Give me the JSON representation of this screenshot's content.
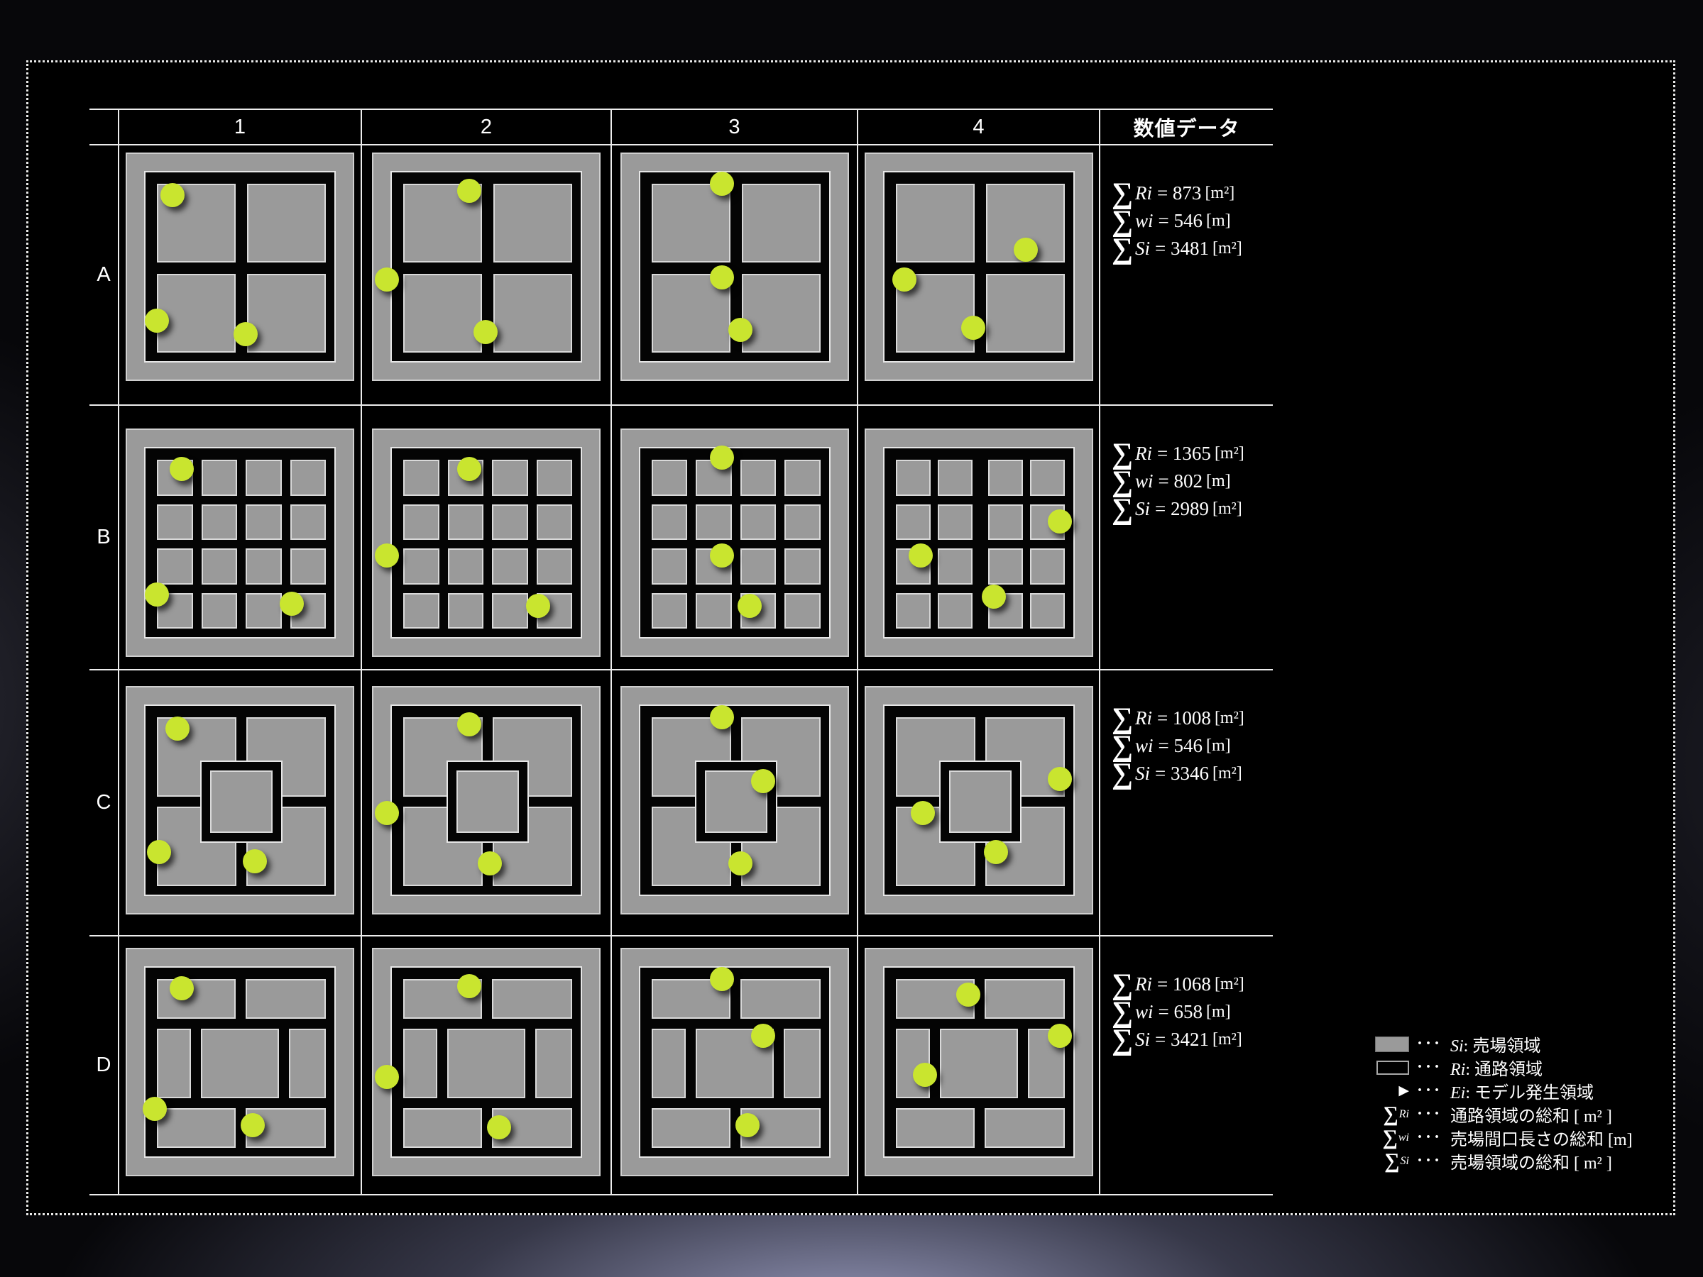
{
  "table": {
    "col_headers": [
      "1",
      "2",
      "3",
      "4"
    ],
    "data_col_header": "数値データ",
    "rows": [
      {
        "label": "A",
        "layout": "quad",
        "metrics": [
          {
            "v": "Ri",
            "e": "= 873",
            "u": "[m²]"
          },
          {
            "v": "wi",
            "e": "= 546",
            "u": "[m]"
          },
          {
            "v": "Si",
            "e": "= 3481",
            "u": "[m²]"
          }
        ],
        "cells": [
          {
            "dots": [
              [
                0.2,
                0.18
              ],
              [
                0.13,
                0.73
              ],
              [
                0.52,
                0.79
              ]
            ]
          },
          {
            "dots": [
              [
                0.42,
                0.16
              ],
              [
                0.06,
                0.55
              ],
              [
                0.49,
                0.78
              ]
            ]
          },
          {
            "dots": [
              [
                0.44,
                0.13
              ],
              [
                0.44,
                0.54
              ],
              [
                0.52,
                0.77
              ]
            ]
          },
          {
            "dots": [
              [
                0.7,
                0.42
              ],
              [
                0.17,
                0.55
              ],
              [
                0.47,
                0.76
              ]
            ]
          }
        ]
      },
      {
        "label": "B",
        "layout": "grid",
        "metrics": [
          {
            "v": "Ri",
            "e": "= 1365",
            "u": "[m²]"
          },
          {
            "v": "wi",
            "e": "= 802",
            "u": "[m]"
          },
          {
            "v": "Si",
            "e": "= 2989",
            "u": "[m²]"
          }
        ],
        "cells": [
          {
            "dots": [
              [
                0.24,
                0.17
              ],
              [
                0.13,
                0.72
              ],
              [
                0.72,
                0.76
              ]
            ]
          },
          {
            "dots": [
              [
                0.42,
                0.17
              ],
              [
                0.06,
                0.55
              ],
              [
                0.72,
                0.77
              ]
            ]
          },
          {
            "dots": [
              [
                0.44,
                0.12
              ],
              [
                0.44,
                0.55
              ],
              [
                0.56,
                0.77
              ]
            ]
          },
          {
            "variant": "wide-center",
            "dots": [
              [
                0.85,
                0.4
              ],
              [
                0.24,
                0.55
              ],
              [
                0.56,
                0.73
              ]
            ]
          }
        ]
      },
      {
        "label": "C",
        "layout": "ring",
        "metrics": [
          {
            "v": "Ri",
            "e": "= 1008",
            "u": "[m²]"
          },
          {
            "v": "wi",
            "e": "= 546",
            "u": "[m]"
          },
          {
            "v": "Si",
            "e": "= 3346",
            "u": "[m²]"
          }
        ],
        "cells": [
          {
            "dots": [
              [
                0.22,
                0.18
              ],
              [
                0.14,
                0.72
              ],
              [
                0.56,
                0.76
              ]
            ]
          },
          {
            "dots": [
              [
                0.42,
                0.16
              ],
              [
                0.06,
                0.55
              ],
              [
                0.51,
                0.77
              ]
            ]
          },
          {
            "dots": [
              [
                0.44,
                0.13
              ],
              [
                0.62,
                0.41
              ],
              [
                0.52,
                0.77
              ]
            ]
          },
          {
            "dots": [
              [
                0.85,
                0.4
              ],
              [
                0.25,
                0.55
              ],
              [
                0.57,
                0.72
              ]
            ]
          }
        ]
      },
      {
        "label": "D",
        "layout": "bands",
        "metrics": [
          {
            "v": "Ri",
            "e": "= 1068",
            "u": "[m²]"
          },
          {
            "v": "wi",
            "e": "= 658",
            "u": "[m]"
          },
          {
            "v": "Si",
            "e": "= 3421",
            "u": "[m²]"
          }
        ],
        "cells": [
          {
            "dots": [
              [
                0.24,
                0.17
              ],
              [
                0.12,
                0.7
              ],
              [
                0.55,
                0.77
              ]
            ]
          },
          {
            "dots": [
              [
                0.42,
                0.16
              ],
              [
                0.06,
                0.56
              ],
              [
                0.55,
                0.78
              ]
            ]
          },
          {
            "dots": [
              [
                0.44,
                0.13
              ],
              [
                0.62,
                0.38
              ],
              [
                0.55,
                0.77
              ]
            ]
          },
          {
            "dots": [
              [
                0.45,
                0.2
              ],
              [
                0.85,
                0.38
              ],
              [
                0.26,
                0.55
              ]
            ]
          }
        ]
      }
    ]
  },
  "legend": {
    "dots": "···",
    "items": [
      {
        "type": "swatch-filled",
        "v": "Si",
        "label": ": 売場領域"
      },
      {
        "type": "swatch-outline",
        "v": "Ri",
        "label": ": 通路領域"
      },
      {
        "type": "triangle",
        "v": "Ei",
        "label": ": モデル発生領域"
      },
      {
        "type": "sigma",
        "v": "Ri",
        "label": "通路領域の総和 [ m² ]"
      },
      {
        "type": "sigma",
        "v": "wi",
        "label": "売場間口長さの総和 [m]"
      },
      {
        "type": "sigma",
        "v": "Si",
        "label": "売場領域の総和 [ m² ]"
      }
    ],
    "triangle_glyph": "▶",
    "sigma_glyph": "∑"
  },
  "colors": {
    "sales_area": "#9a9a9a",
    "aisle": "#040404",
    "dot": "#c9e52f",
    "line": "#ededed",
    "text": "#ffffff"
  }
}
